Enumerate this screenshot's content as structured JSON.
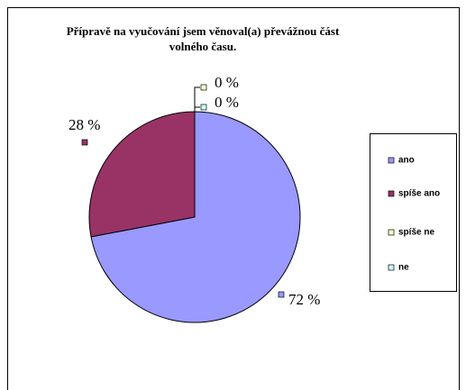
{
  "chart_data": {
    "type": "pie",
    "title": "Přípravě na vyučování jsem věnoval(a) převážnou část volného času.",
    "categories": [
      "ano",
      "spíše ano",
      "spíše ne",
      "ne"
    ],
    "values": [
      72,
      28,
      0,
      0
    ],
    "value_labels": [
      "72 %",
      "28 %",
      "0 %",
      "0 %"
    ],
    "colors": [
      "#9999ff",
      "#993366",
      "#ffffcc",
      "#ccffff"
    ],
    "legend": "right"
  }
}
